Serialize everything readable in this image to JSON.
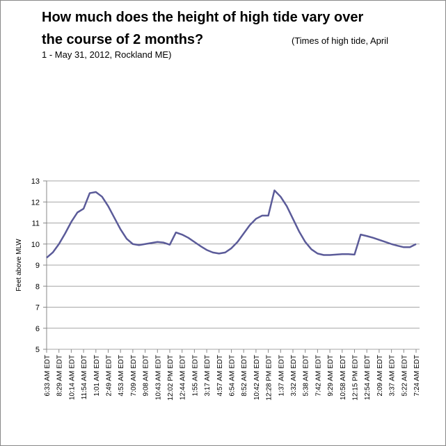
{
  "chart_data": {
    "type": "line",
    "title": [
      "How much does the height of high tide vary over",
      "the course of 2 months?"
    ],
    "subtitle": [
      "(Times of high tide, April",
      "1 - May 31, 2012, Rockland ME)"
    ],
    "y_label": "Feet above MLW",
    "categories": [
      "6:33 AM EDT",
      null,
      "8:29 AM EDT",
      null,
      "10:14 AM EDT",
      null,
      "11:54 AM EDT",
      null,
      "1:01 AM EDT",
      null,
      "2:49 AM EDT",
      null,
      "4:53 AM EDT",
      null,
      "7:09 AM EDT",
      null,
      "9:08 AM EDT",
      null,
      "10:43 AM EDT",
      null,
      "12:02 PM EDT",
      null,
      "12:44 AM EDT",
      null,
      "1:55 AM EDT",
      null,
      "3:17 AM EDT",
      null,
      "4:57 AM EDT",
      null,
      "6:54 AM EDT",
      null,
      "8:52 AM EDT",
      null,
      "10:42 AM EDT",
      null,
      "12:28 PM EDT",
      null,
      "1:37 AM EDT",
      null,
      "3:32 AM EDT",
      null,
      "5:38 AM EDT",
      null,
      "7:42 AM EDT",
      null,
      "9:29 AM EDT",
      null,
      "10:58 AM EDT",
      null,
      "12:15 PM EDT",
      null,
      "12:54 AM EDT",
      null,
      "2:09 AM EDT",
      null,
      "3:37 AM EDT",
      null,
      "5:22 AM EDT",
      null,
      "7:24 AM EDT"
    ],
    "series": [
      {
        "color": "#5b5b99",
        "values": [
          9.35,
          9.6,
          10.0,
          10.5,
          11.05,
          11.5,
          11.68,
          12.42,
          12.47,
          12.25,
          11.8,
          11.25,
          10.7,
          10.25,
          10.0,
          9.95,
          10.0,
          10.05,
          10.1,
          10.07,
          9.97,
          10.55,
          10.45,
          10.3,
          10.1,
          9.9,
          9.72,
          9.6,
          9.55,
          9.6,
          9.8,
          10.1,
          10.5,
          10.9,
          11.2,
          11.35,
          11.35,
          12.55,
          12.25,
          11.8,
          11.2,
          10.6,
          10.1,
          9.75,
          9.55,
          9.48,
          9.48,
          9.5,
          9.52,
          9.52,
          9.5,
          10.45,
          10.38,
          10.3,
          10.2,
          10.1,
          10.0,
          9.92,
          9.85,
          9.85,
          10.0
        ]
      }
    ],
    "ylim": [
      5,
      13
    ],
    "yticks": [
      5,
      6,
      7,
      8,
      9,
      10,
      11,
      12,
      13
    ],
    "grid": true
  }
}
